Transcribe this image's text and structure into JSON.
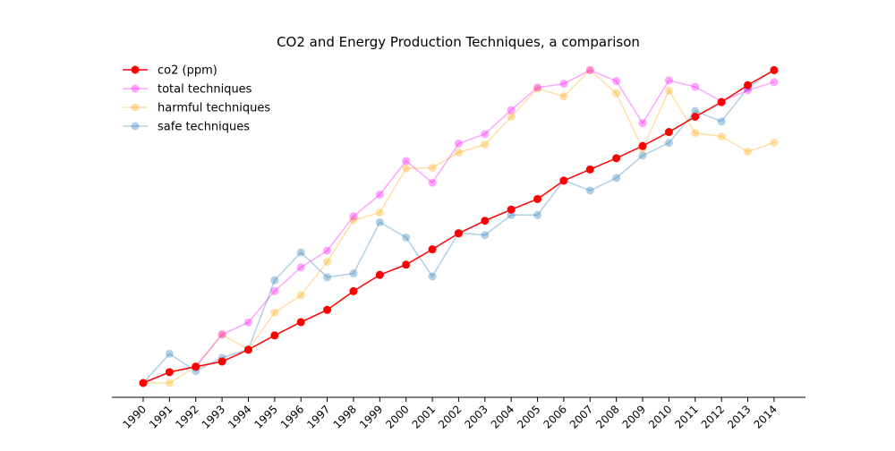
{
  "chart_data": {
    "type": "line",
    "title": "CO2 and Energy Production Techniques, a comparison",
    "xlabel": "",
    "ylabel": "",
    "y_axis_visible": false,
    "grid": false,
    "legend_placement": "upper-left",
    "categories": [
      "1990",
      "1991",
      "1992",
      "1993",
      "1994",
      "1995",
      "1996",
      "1997",
      "1998",
      "1999",
      "2000",
      "2001",
      "2002",
      "2003",
      "2004",
      "2005",
      "2006",
      "2007",
      "2008",
      "2009",
      "2010",
      "2011",
      "2012",
      "2013",
      "2014"
    ],
    "series": [
      {
        "name": "co2 (ppm)",
        "color": "#ff0000",
        "opacity": 1.0,
        "values": [
          0.0,
          0.032,
          0.048,
          0.063,
          0.098,
          0.14,
          0.179,
          0.215,
          0.27,
          0.318,
          0.348,
          0.393,
          0.44,
          0.477,
          0.51,
          0.541,
          0.595,
          0.628,
          0.661,
          0.697,
          0.738,
          0.783,
          0.826,
          0.876,
          0.92
        ]
      },
      {
        "name": "total techniques",
        "color": "#ff00ff",
        "opacity": 0.35,
        "values": [
          0.0,
          0.032,
          0.048,
          0.143,
          0.178,
          0.27,
          0.34,
          0.389,
          0.49,
          0.554,
          0.653,
          0.589,
          0.704,
          0.732,
          0.803,
          0.869,
          0.88,
          0.92,
          0.888,
          0.764,
          0.89,
          0.871,
          0.828,
          0.861,
          0.885
        ]
      },
      {
        "name": "harmful techniques",
        "color": "#ffa500",
        "opacity": 0.35,
        "values": [
          0.0,
          0.0,
          0.048,
          0.143,
          0.098,
          0.207,
          0.258,
          0.356,
          0.479,
          0.501,
          0.631,
          0.633,
          0.678,
          0.701,
          0.783,
          0.866,
          0.843,
          0.92,
          0.852,
          0.689,
          0.86,
          0.735,
          0.725,
          0.68,
          0.707
        ]
      },
      {
        "name": "safe techniques",
        "color": "#1f77b4",
        "opacity": 0.35,
        "values": [
          0.0,
          0.086,
          0.035,
          0.074,
          0.099,
          0.302,
          0.384,
          0.311,
          0.322,
          0.473,
          0.428,
          0.313,
          0.442,
          0.435,
          0.494,
          0.494,
          0.596,
          0.566,
          0.603,
          0.669,
          0.706,
          0.8,
          0.769,
          0.868,
          0.92
        ]
      }
    ]
  }
}
